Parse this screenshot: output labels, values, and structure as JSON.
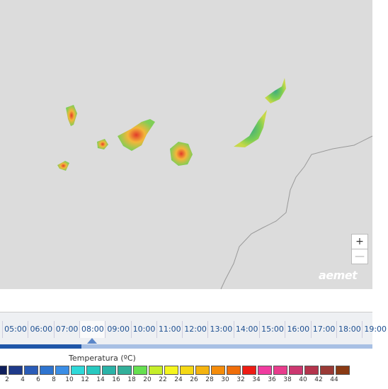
{
  "map": {
    "zoom_in": "+",
    "zoom_out": "—",
    "logo": "aemet"
  },
  "timeline": {
    "times": [
      "05:00",
      "06:00",
      "07:00",
      "08:00",
      "09:00",
      "10:00",
      "11:00",
      "12:00",
      "13:00",
      "14:00",
      "15:00",
      "16:00",
      "17:00",
      "18:00",
      "19:00"
    ],
    "selected": "08:00"
  },
  "legend": {
    "title": "Temperatura (ºC)",
    "colors": [
      "#0f1f5c",
      "#1f3a8a",
      "#2a5cb8",
      "#2f74cf",
      "#3b8ee6",
      "#2fd9d9",
      "#28c9c0",
      "#2bb3a8",
      "#33b09a",
      "#66e050",
      "#c6ee2a",
      "#f5f51e",
      "#f5d814",
      "#f5b40f",
      "#f58c0a",
      "#f06e0a",
      "#ee1c14",
      "#f03ca0",
      "#e83c8c",
      "#cc3870",
      "#b4344c",
      "#9a3a36",
      "#8a3a14"
    ],
    "labels": [
      "2",
      "4",
      "6",
      "8",
      "10",
      "12",
      "14",
      "16",
      "18",
      "20",
      "22",
      "24",
      "26",
      "28",
      "30",
      "32",
      "34",
      "36",
      "38",
      "40",
      "42",
      "44"
    ]
  }
}
